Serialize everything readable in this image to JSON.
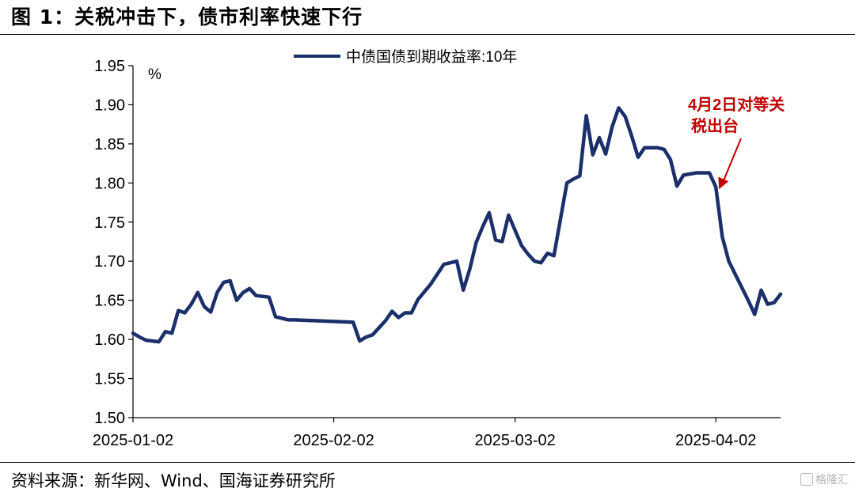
{
  "figure": {
    "title": "图 1：关税冲击下，债市利率快速下行",
    "source": "资料来源：新华网、Wind、国海证券研究所",
    "watermark": "格隆汇"
  },
  "chart_data": {
    "type": "line",
    "title": "",
    "xlabel": "",
    "ylabel": "%",
    "ylim": [
      1.5,
      1.95
    ],
    "yticks": [
      "1.50",
      "1.55",
      "1.60",
      "1.65",
      "1.70",
      "1.75",
      "1.80",
      "1.85",
      "1.90",
      "1.95"
    ],
    "xlim": [
      "2025-01-02",
      "2025-04-12"
    ],
    "xticks": [
      "2025-01-02",
      "2025-02-02",
      "2025-03-02",
      "2025-04-02"
    ],
    "grid": false,
    "legend": "top-center",
    "series_color": "#1b2f6b",
    "annotation": {
      "text_line1": "4月2日对等关",
      "text_line2": "税出台",
      "color": "#c00000",
      "x": "2025-04-02",
      "y": 1.795
    },
    "series": [
      {
        "name": "中债国债到期收益率:10年",
        "x": [
          "2025-01-02",
          "2025-01-03",
          "2025-01-04",
          "2025-01-06",
          "2025-01-07",
          "2025-01-08",
          "2025-01-09",
          "2025-01-10",
          "2025-01-11",
          "2025-01-12",
          "2025-01-13",
          "2025-01-14",
          "2025-01-15",
          "2025-01-16",
          "2025-01-17",
          "2025-01-18",
          "2025-01-19",
          "2025-01-20",
          "2025-01-21",
          "2025-01-22",
          "2025-01-23",
          "2025-01-24",
          "2025-01-25",
          "2025-01-26",
          "2025-01-27",
          "2025-02-05",
          "2025-02-06",
          "2025-02-07",
          "2025-02-08",
          "2025-02-10",
          "2025-02-11",
          "2025-02-12",
          "2025-02-13",
          "2025-02-14",
          "2025-02-15",
          "2025-02-17",
          "2025-02-19",
          "2025-02-21",
          "2025-02-22",
          "2025-02-23",
          "2025-02-24",
          "2025-02-25",
          "2025-02-26",
          "2025-02-27",
          "2025-02-28",
          "2025-03-01",
          "2025-03-03",
          "2025-03-04",
          "2025-03-05",
          "2025-03-06",
          "2025-03-07",
          "2025-03-08",
          "2025-03-10",
          "2025-03-11",
          "2025-03-12",
          "2025-03-13",
          "2025-03-14",
          "2025-03-15",
          "2025-03-16",
          "2025-03-17",
          "2025-03-18",
          "2025-03-19",
          "2025-03-20",
          "2025-03-21",
          "2025-03-22",
          "2025-03-24",
          "2025-03-25",
          "2025-03-26",
          "2025-03-27",
          "2025-03-28",
          "2025-03-30",
          "2025-03-31",
          "2025-04-01",
          "2025-04-02",
          "2025-04-03",
          "2025-04-04",
          "2025-04-07",
          "2025-04-08",
          "2025-04-09",
          "2025-04-10",
          "2025-04-11",
          "2025-04-12"
        ],
        "values": [
          1.608,
          1.603,
          1.599,
          1.597,
          1.61,
          1.608,
          1.637,
          1.634,
          1.645,
          1.66,
          1.642,
          1.635,
          1.66,
          1.673,
          1.675,
          1.65,
          1.66,
          1.665,
          1.656,
          1.655,
          1.654,
          1.629,
          1.627,
          1.625,
          1.625,
          1.622,
          1.598,
          1.603,
          1.606,
          1.624,
          1.636,
          1.628,
          1.634,
          1.634,
          1.651,
          1.671,
          1.696,
          1.7,
          1.663,
          1.69,
          1.724,
          1.744,
          1.762,
          1.727,
          1.725,
          1.759,
          1.72,
          1.709,
          1.7,
          1.698,
          1.71,
          1.707,
          1.8,
          1.805,
          1.809,
          1.886,
          1.836,
          1.858,
          1.837,
          1.872,
          1.896,
          1.885,
          1.86,
          1.833,
          1.845,
          1.845,
          1.843,
          1.83,
          1.796,
          1.81,
          1.813,
          1.813,
          1.813,
          1.795,
          1.731,
          1.7,
          1.65,
          1.632,
          1.663,
          1.645,
          1.647,
          1.658
        ]
      }
    ]
  }
}
